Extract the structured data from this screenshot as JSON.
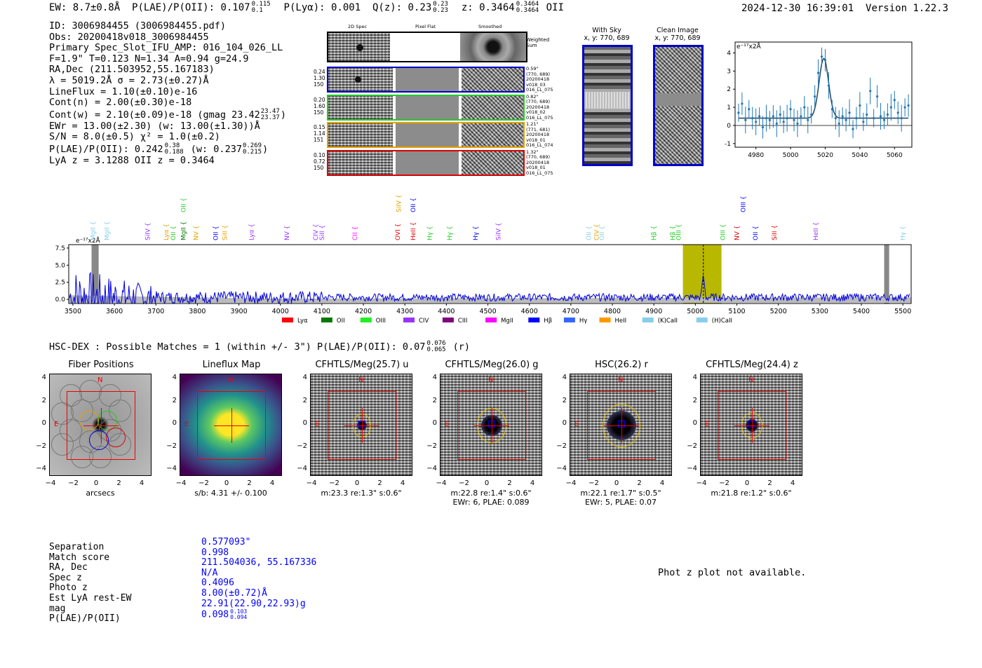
{
  "header": {
    "ew": "EW: 8.7±0.8Å",
    "plae": "P(LAE)/P(OII): 0.107",
    "plae_hi": "0.115",
    "plae_lo": "0.1",
    "plya": "P(Lyα): 0.001",
    "qz": "Q(z): 0.23",
    "qz_hi": "0.23",
    "qz_lo": "0.23",
    "z": "z: 0.3464",
    "z_hi": "0.3464",
    "z_lo": "0.3464",
    "z_line": "OII",
    "timestamp": "2024-12-30 16:39:01",
    "version": "Version 1.22.3"
  },
  "info": {
    "lines": [
      "ID: 3006984455 (3006984455.pdf)",
      "Obs: 20200418v018_3006984455",
      "Primary Spec_Slot_IFU_AMP: 016_104_026_LL",
      "F=1.9\"  T=0.123  N=1.34  A=0.94  g=24.9",
      "RA,Dec (211.503952,55.167183)",
      "λ = 5019.2Å   σ = 2.73(±0.27)Å",
      "LineFlux = 1.10(±0.10)e-16",
      "Cont(n) = 2.00(±0.30)e-18"
    ],
    "contw": "Cont(w) = 2.10(±0.09)e-18 (gmag 23.42",
    "contw_hi": "23.47",
    "contw_lo": "23.37",
    "contw_end": ")",
    "ewr": "EWr = 13.00(±2.30) (w: 13.00(±1.30))Å",
    "sn": "S/N = 8.0(±0.5)  χ² = 1.0(±0.2)",
    "plae2": "P(LAE)/P(OII): 0.242",
    "plae2_hi": "0.38",
    "plae2_lo": "0.188",
    "plae2_w": "(w: 0.237",
    "plae2_w_hi": "0.269",
    "plae2_w_lo": "0.215",
    "plae2_end": ")",
    "lya": "LyA z = 3.1288   OII z = 0.3464"
  },
  "cutouts": {
    "col_titles": [
      "2D Spec",
      "Pixel Flat",
      "Smoothed"
    ],
    "weighted_sum": "Weighted Sum",
    "rows": [
      {
        "left": [
          "0.24",
          "1.30",
          "150"
        ],
        "right": [
          "0.59\"",
          "(770, 689)",
          "20200418",
          "v018_03",
          "016_LL_075"
        ],
        "color": "#0000cc"
      },
      {
        "left": [
          "0.20",
          "1.60",
          "150"
        ],
        "right": [
          "0.82\"",
          "(770, 689)",
          "20200418",
          "v018_02",
          "016_LL_075"
        ],
        "color": "#22cc22"
      },
      {
        "left": [
          "0.15",
          "1.14",
          "151"
        ],
        "right": [
          "1.21\"",
          "(771, 681)",
          "20200418",
          "v018_01",
          "016_LL_074"
        ],
        "color": "#e6a000"
      },
      {
        "left": [
          "0.10",
          "0.72",
          "150"
        ],
        "right": [
          "1.32\"",
          "(770, 689)",
          "20200418",
          "v018_01",
          "016_LL_075"
        ],
        "color": "#dd0000"
      }
    ],
    "with_sky": "With Sky",
    "with_sky_xy": "x, y: 770, 689",
    "clean": "Clean Image",
    "clean_xy": "x, y: 770, 689"
  },
  "chart_data": [
    {
      "type": "line",
      "title": "",
      "ylabel": "e⁻¹⁷x2Å",
      "xlim": [
        4968,
        5070
      ],
      "ylim": [
        -1.2,
        4.6
      ],
      "xticks": [
        4980,
        5000,
        5020,
        5040,
        5060
      ],
      "yticks": [
        -1,
        0,
        1,
        2,
        3,
        4
      ],
      "fit_center": 5019.2,
      "fit_sigma": 2.73,
      "fit_amp": 3.3,
      "fit_cont": 0.4,
      "x": [
        4970,
        4972,
        4974,
        4976,
        4978,
        4980,
        4982,
        4984,
        4986,
        4988,
        4990,
        4992,
        4994,
        4996,
        4998,
        5000,
        5002,
        5004,
        5006,
        5008,
        5010,
        5012,
        5014,
        5016,
        5018,
        5020,
        5022,
        5024,
        5026,
        5028,
        5030,
        5032,
        5034,
        5036,
        5038,
        5040,
        5042,
        5044,
        5046,
        5048,
        5050,
        5052,
        5054,
        5056,
        5058,
        5060,
        5062,
        5064,
        5066,
        5068
      ],
      "y": [
        0.7,
        1.2,
        0.3,
        0.9,
        0.4,
        0.2,
        0.5,
        -0.1,
        0.4,
        0.3,
        0.5,
        0.1,
        0.6,
        0.2,
        0.4,
        0.9,
        0.3,
        0.1,
        0.5,
        1.0,
        0.3,
        0.6,
        1.6,
        2.9,
        3.8,
        3.6,
        2.2,
        0.9,
        0.4,
        0.1,
        0.5,
        0.3,
        0.7,
        -0.2,
        0.4,
        1.1,
        0.2,
        0.6,
        1.9,
        0.4,
        1.6,
        0.5,
        0.3,
        0.6,
        1.0,
        1.4,
        0.7,
        0.4,
        1.0,
        1.1
      ]
    },
    {
      "type": "line",
      "title": "",
      "ylabel": "e⁻¹⁷x2Å",
      "xlim": [
        3490,
        5520
      ],
      "ylim": [
        -0.6,
        8.0
      ],
      "xticks": [
        3500,
        3600,
        3700,
        3800,
        3900,
        4000,
        4100,
        4200,
        4300,
        4400,
        4500,
        4600,
        4700,
        4800,
        4900,
        5000,
        5100,
        5200,
        5300,
        5400,
        5500
      ],
      "yticks": [
        0.0,
        2.5,
        5.0,
        7.5
      ],
      "highlight": [
        4970,
        5063
      ],
      "marker": 5019.2,
      "lines": [
        {
          "name": "MgII",
          "x": 3548,
          "color": "#87ceeb",
          "row": 1
        },
        {
          "name": "MgII",
          "x": 3582,
          "color": "#87ceeb",
          "row": 1
        },
        {
          "name": "SiIV",
          "x": 3680,
          "color": "#9933ff",
          "row": 1
        },
        {
          "name": "Lyα",
          "x": 3725,
          "color": "#e6a000",
          "row": 1
        },
        {
          "name": "OII",
          "x": 3742,
          "color": "#22cc22",
          "row": 1
        },
        {
          "name": "MgII",
          "x": 3766,
          "color": "#007700",
          "row": 1
        },
        {
          "name": "OII",
          "x": 3766,
          "color": "#22cc22",
          "row": 0
        },
        {
          "name": "NV",
          "x": 3797,
          "color": "#e6a000",
          "row": 1
        },
        {
          "name": "OII",
          "x": 3844,
          "color": "#0000ff",
          "row": 1
        },
        {
          "name": "SiII",
          "x": 3866,
          "color": "#e6a000",
          "row": 1
        },
        {
          "name": "Lyα",
          "x": 3930,
          "color": "#9933ff",
          "row": 1
        },
        {
          "name": "NV",
          "x": 4016,
          "color": "#9933ff",
          "row": 1
        },
        {
          "name": "CIV",
          "x": 4085,
          "color": "#9933ff",
          "row": 1
        },
        {
          "name": "SiII",
          "x": 4100,
          "color": "#9933ff",
          "row": 1
        },
        {
          "name": "CII",
          "x": 4180,
          "color": "#ff00ff",
          "row": 1
        },
        {
          "name": "OVI",
          "x": 4283,
          "color": "#dd0000",
          "row": 1
        },
        {
          "name": "SiIV",
          "x": 4285,
          "color": "#e6a000",
          "row": 0
        },
        {
          "name": "OII",
          "x": 4320,
          "color": "#0000ff",
          "row": 0
        },
        {
          "name": "HeII",
          "x": 4320,
          "color": "#dd0000",
          "row": 1
        },
        {
          "name": "Hγ",
          "x": 4360,
          "color": "#22cc22",
          "row": 1
        },
        {
          "name": "Hγ",
          "x": 4408,
          "color": "#22cc22",
          "row": 1
        },
        {
          "name": "Hγ",
          "x": 4470,
          "color": "#0000ff",
          "row": 1
        },
        {
          "name": "SiIV",
          "x": 4525,
          "color": "#9933ff",
          "row": 1
        },
        {
          "name": "OII",
          "x": 4743,
          "color": "#87ceeb",
          "row": 1
        },
        {
          "name": "CIV",
          "x": 4762,
          "color": "#e6a000",
          "row": 1
        },
        {
          "name": "OII",
          "x": 4775,
          "color": "#87ceeb",
          "row": 1
        },
        {
          "name": "Hβ",
          "x": 4900,
          "color": "#22cc22",
          "row": 1
        },
        {
          "name": "Hβ",
          "x": 4945,
          "color": "#22cc22",
          "row": 1
        },
        {
          "name": "OIII",
          "x": 4960,
          "color": "#22cc22",
          "row": 1
        },
        {
          "name": "OIII",
          "x": 5066,
          "color": "#22cc22",
          "row": 1
        },
        {
          "name": "NV",
          "x": 5100,
          "color": "#dd0000",
          "row": 1
        },
        {
          "name": "OIII",
          "x": 5115,
          "color": "#0000ff",
          "row": 0
        },
        {
          "name": "OII",
          "x": 5145,
          "color": "#0000ff",
          "row": 1
        },
        {
          "name": "SiII",
          "x": 5190,
          "color": "#dd0000",
          "row": 1
        },
        {
          "name": "HeII",
          "x": 5290,
          "color": "#9933ff",
          "row": 1
        },
        {
          "name": "Hγ",
          "x": 5500,
          "color": "#87ceeb",
          "row": 1
        }
      ]
    }
  ],
  "legend": [
    {
      "name": "Lyα",
      "color": "#ff0000"
    },
    {
      "name": "OII",
      "color": "#007700"
    },
    {
      "name": "OIII",
      "color": "#22ee22"
    },
    {
      "name": "CIV",
      "color": "#9933ff"
    },
    {
      "name": "CIII",
      "color": "#800080"
    },
    {
      "name": "MgII",
      "color": "#ff00ff"
    },
    {
      "name": "Hβ",
      "color": "#0000ff"
    },
    {
      "name": "Hγ",
      "color": "#3366ff"
    },
    {
      "name": "HeII",
      "color": "#ff9900"
    },
    {
      "name": "(K)CaII",
      "color": "#87ceeb"
    },
    {
      "name": "(H)CaII",
      "color": "#87ceeb"
    }
  ],
  "hsc": {
    "summary": "HSC-DEX : Possible Matches = 1 (within +/- 3\")  P(LAE)/P(OII): 0.07",
    "summary_hi": "0.076",
    "summary_lo": "0.065",
    "summary_end": "(r)",
    "panels": [
      {
        "title": "Fiber Positions",
        "cap1": "arcsecs",
        "cap2": ""
      },
      {
        "title": "Lineflux Map",
        "cap1": "s/b: 4.31 +/- 0.100",
        "cap2": ""
      },
      {
        "title": "CFHTLS/Meg(25.7) u",
        "cap1": "m:23.3  re:1.3\"  s:0.6\"",
        "cap2": ""
      },
      {
        "title": "CFHTLS/Meg(26.0) g",
        "cap1": "m:22.8  re:1.4\"  s:0.6\"",
        "cap2": "EWr: 6, PLAE: 0.089"
      },
      {
        "title": "HSC(26.2) r",
        "cap1": "m:22.1  re:1.7\"  s:0.5\"",
        "cap2": "EWr: 5, PLAE: 0.07"
      },
      {
        "title": "CFHTLS/Meg(24.4) z",
        "cap1": "m:21.8  re:1.2\"  s:0.6\"",
        "cap2": ""
      }
    ],
    "axis_ticks": [
      "4",
      "2",
      "0",
      "−2",
      "−4"
    ],
    "xaxis_ticks": [
      "−4",
      "−2",
      "0",
      "2",
      "4"
    ],
    "north": "N",
    "east": "E"
  },
  "match": {
    "labels": [
      "Separation",
      "Match score",
      "RA, Dec",
      "Spec z",
      "Photo z",
      "Est LyA rest-EW",
      "mag",
      "P(LAE)/P(OII)"
    ],
    "values": [
      "0.577093\"",
      "0.998",
      "211.504036, 55.167336",
      "N/A",
      "0.4096",
      "8.00(±0.72)Å",
      "22.91(22.90,22.93)g",
      "0.098"
    ],
    "plae_hi": "0.103",
    "plae_lo": "0.094",
    "photz_msg": "Phot z plot not available."
  }
}
